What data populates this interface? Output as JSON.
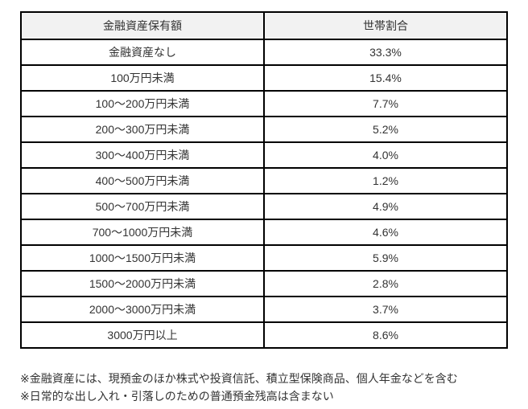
{
  "page": {
    "background_color": "#ffffff",
    "text_color": "#333333",
    "border_color": "#000000",
    "header_bg_color": "#f2f2f2"
  },
  "table": {
    "headers": [
      "金融資産保有額",
      "世帯割合"
    ],
    "rows": [
      {
        "range": "金融資産なし",
        "share": "33.3%"
      },
      {
        "range": "100万円未満",
        "share": "15.4%"
      },
      {
        "range": "100〜200万円未満",
        "share": "7.7%"
      },
      {
        "range": "200〜300万円未満",
        "share": "5.2%"
      },
      {
        "range": "300〜400万円未満",
        "share": "4.0%"
      },
      {
        "range": "400〜500万円未満",
        "share": "1.2%"
      },
      {
        "range": "500〜700万円未満",
        "share": "4.9%"
      },
      {
        "range": "700〜1000万円未満",
        "share": "4.6%"
      },
      {
        "range": "1000〜1500万円未満",
        "share": "5.9%"
      },
      {
        "range": "1500〜2000万円未満",
        "share": "2.8%"
      },
      {
        "range": "2000〜3000万円未満",
        "share": "3.7%"
      },
      {
        "range": "3000万円以上",
        "share": "8.6%"
      }
    ]
  },
  "footnotes": [
    "※金融資産には、現預金のほか株式や投資信託、積立型保険商品、個人年金などを含む",
    "※日常的な出し入れ・引落しのための普通預金残高は含まない"
  ],
  "chart_data": {
    "type": "table",
    "title": "",
    "columns": [
      "金融資産保有額",
      "世帯割合"
    ],
    "categories": [
      "金融資産なし",
      "100万円未満",
      "100〜200万円未満",
      "200〜300万円未満",
      "300〜400万円未満",
      "400〜500万円未満",
      "500〜700万円未満",
      "700〜1000万円未満",
      "1000〜1500万円未満",
      "1500〜2000万円未満",
      "2000〜3000万円未満",
      "3000万円以上"
    ],
    "values": [
      33.3,
      15.4,
      7.7,
      5.2,
      4.0,
      1.2,
      4.9,
      4.6,
      5.9,
      2.8,
      3.7,
      8.6
    ],
    "unit": "%",
    "annotations": [
      "※金融資産には、現預金のほか株式や投資信託、積立型保険商品、個人年金などを含む",
      "※日常的な出し入れ・引落しのための普通預金残高は含まない"
    ]
  }
}
